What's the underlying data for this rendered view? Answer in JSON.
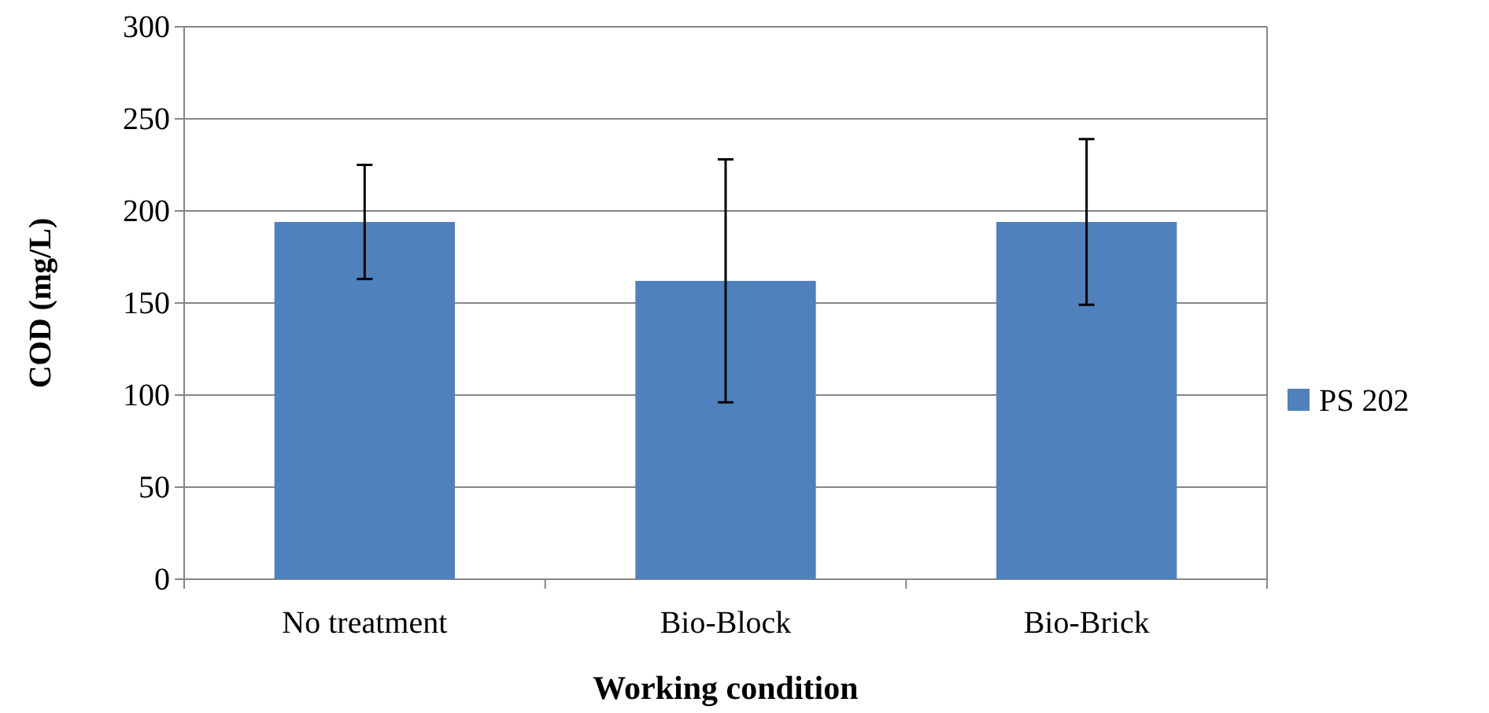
{
  "chart_data": {
    "type": "bar",
    "xlabel": "Working condition",
    "ylabel": "COD (mg/L)",
    "categories": [
      "No treatment",
      "Bio-Block",
      "Bio-Brick"
    ],
    "series": [
      {
        "name": "PS 202",
        "color": "#4f81bd",
        "values": [
          194,
          162,
          194
        ],
        "errors": [
          31,
          66,
          45
        ]
      }
    ],
    "ylim": [
      0,
      300
    ],
    "yticks": [
      0,
      50,
      100,
      150,
      200,
      250,
      300
    ],
    "grid": "y",
    "legend": "right"
  }
}
